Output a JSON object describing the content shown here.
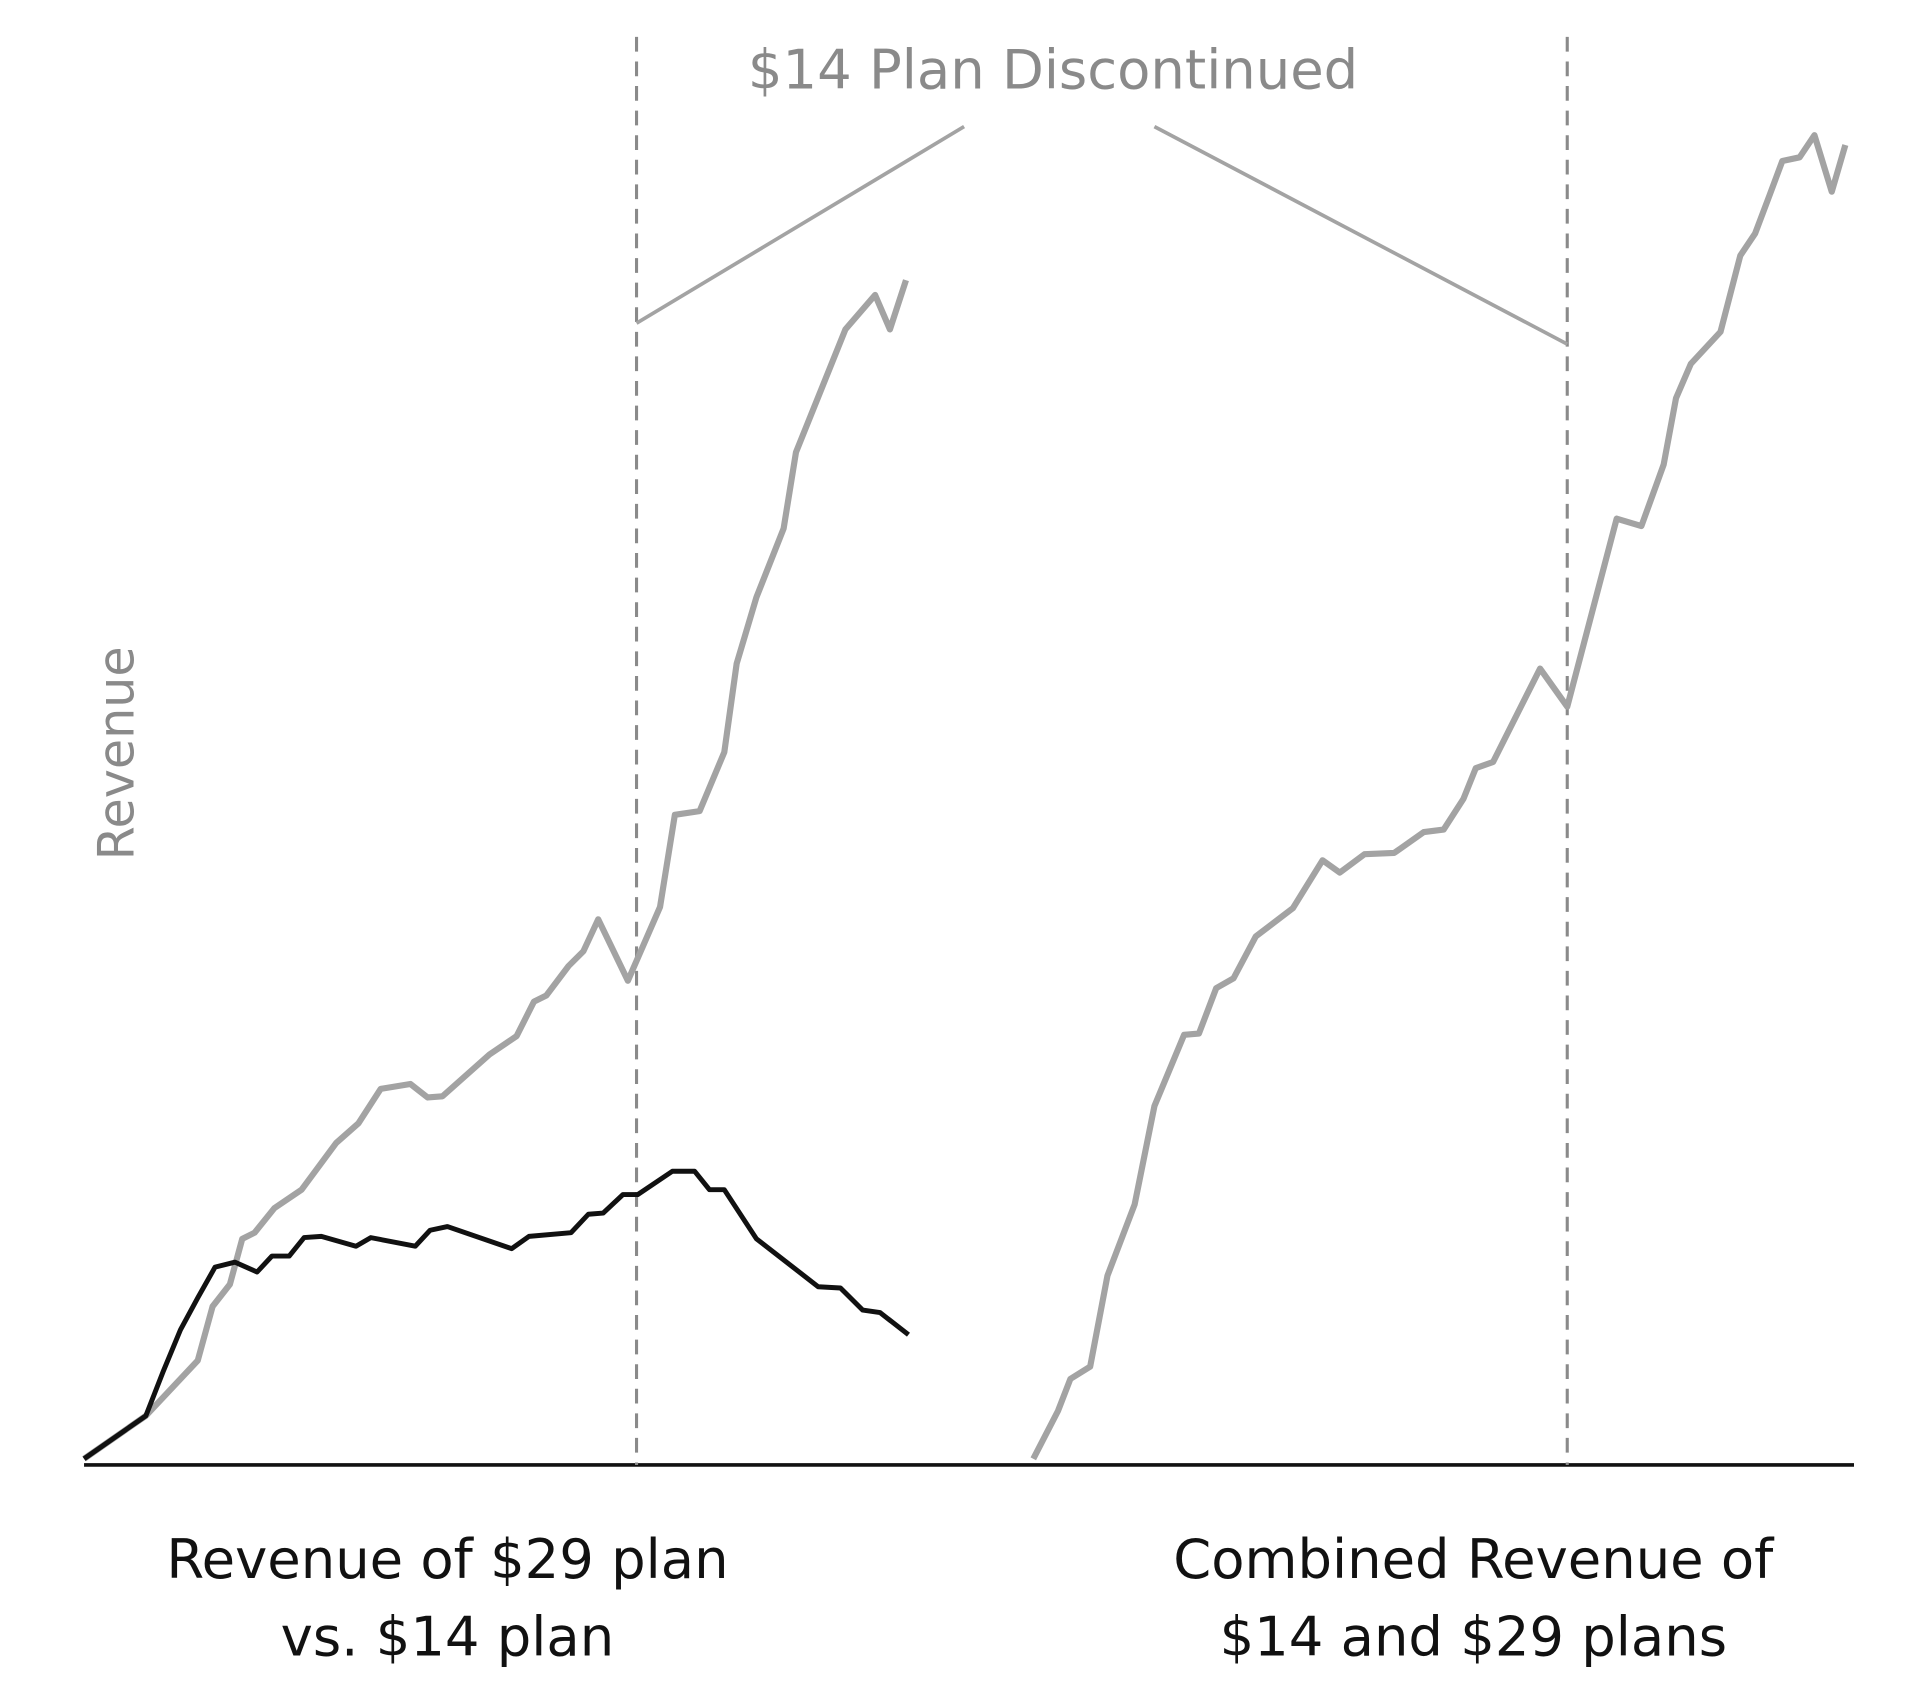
{
  "annotation": "$14 Plan Discontinued",
  "y_label": "Revenue",
  "chart_data": [
    {
      "type": "line",
      "caption": [
        "Revenue of $29 plan",
        "vs. $14 plan"
      ],
      "xlim": [
        0,
        70
      ],
      "ylim": [
        0,
        110
      ],
      "event_x": 44.7,
      "series": [
        {
          "color": "#a3a3a3",
          "x": [
            0,
            5,
            9.2,
            10.4,
            11.8,
            12.8,
            13.8,
            15.4,
            17.6,
            20.4,
            22.2,
            24,
            26.4,
            27.8,
            29,
            32.8,
            35,
            36.4,
            37.4,
            39.2,
            40.4,
            41.6,
            44,
            46.6,
            47.8,
            49.8,
            51.8,
            52.8,
            54.4,
            56.6,
            57.6,
            61.6,
            64,
            65.2,
            66.5
          ],
          "values": [
            0.5,
            4,
            8.5,
            12.9,
            14.7,
            18.4,
            18.9,
            20.9,
            22.4,
            26.2,
            27.8,
            30.6,
            31,
            29.9,
            30,
            33.4,
            34.9,
            37.7,
            38.2,
            40.6,
            41.8,
            44.4,
            39.4,
            45.4,
            52.9,
            53.2,
            58,
            65.2,
            70.6,
            76.2,
            82.4,
            92.4,
            95.2,
            92.4,
            96.4
          ]
        },
        {
          "color": "#111111",
          "x": [
            0,
            5,
            6.4,
            7.8,
            9.2,
            10.6,
            12.2,
            14,
            15.2,
            16.6,
            17.8,
            19.2,
            22,
            23.2,
            26.8,
            28,
            29.4,
            34.6,
            36,
            39.4,
            40.8,
            42,
            43.6,
            44.8,
            47.6,
            49.4,
            50.6,
            51.8,
            54.4,
            59.4,
            61.2,
            63,
            64.4,
            66.7
          ],
          "values": [
            0.5,
            4,
            7.6,
            11,
            13.6,
            16.1,
            16.5,
            15.7,
            17,
            17,
            18.5,
            18.6,
            17.8,
            18.5,
            17.8,
            19.1,
            19.4,
            17.6,
            18.6,
            18.9,
            20.4,
            20.5,
            22,
            22,
            23.9,
            23.9,
            22.4,
            22.4,
            18.4,
            14.5,
            14.4,
            12.6,
            12.4,
            10.6
          ]
        }
      ]
    },
    {
      "type": "line",
      "caption": [
        "Combined Revenue of",
        "$14 and $29 plans"
      ],
      "xlim": [
        -6.8,
        66.4
      ],
      "ylim": [
        0,
        110
      ],
      "event_x": 43.2,
      "series": [
        {
          "color": "#a3a3a3",
          "x": [
            0,
            2,
            3,
            4.6,
            6,
            8.2,
            9.8,
            12.2,
            13.4,
            14.8,
            16.2,
            18,
            21,
            23.4,
            24.8,
            26.8,
            29.2,
            31.6,
            33.2,
            34.8,
            35.8,
            37.2,
            41,
            43.2,
            47.2,
            49.2,
            51,
            52,
            53.2,
            55.6,
            57.2,
            58.4,
            59.6,
            60.6,
            62,
            63.2,
            64.6,
            65.7
          ],
          "values": [
            0.5,
            4.4,
            7,
            8,
            15.4,
            21.2,
            29.2,
            35,
            35.1,
            38.8,
            39.6,
            43,
            45.3,
            49.2,
            48.2,
            49.7,
            49.8,
            51.5,
            51.7,
            54.2,
            56.7,
            57.2,
            64.8,
            61.7,
            77,
            76.4,
            81.4,
            86.8,
            89.6,
            92.2,
            98.4,
            100.2,
            103.4,
            106.1,
            106.4,
            108.2,
            103.6,
            107.4
          ]
        }
      ]
    }
  ]
}
